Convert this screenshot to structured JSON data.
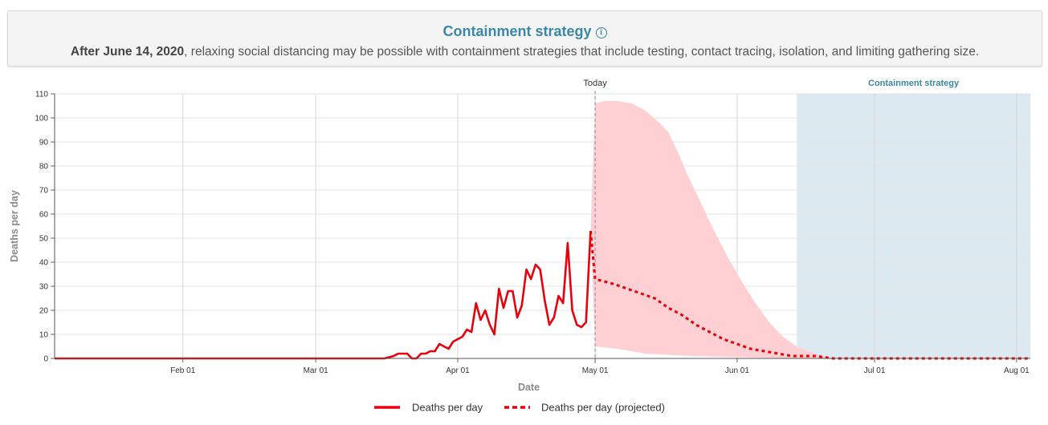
{
  "banner": {
    "title": "Containment strategy",
    "info_icon": "info-icon",
    "subtitle_bold": "After June 14, 2020",
    "subtitle_rest": ", relaxing social distancing may be possible with containment strategies that include testing, contact tracing, isolation, and limiting gathering size."
  },
  "chart_data": {
    "type": "line",
    "xlabel": "Date",
    "ylabel": "Deaths per day",
    "ylim": [
      0,
      110
    ],
    "xlim": [
      "2020-01-04",
      "2020-08-04"
    ],
    "grid": true,
    "yticks": [
      0,
      10,
      20,
      30,
      40,
      50,
      60,
      70,
      80,
      90,
      100,
      110
    ],
    "xticks": [
      {
        "date": "2020-02-01",
        "label": "Feb 01"
      },
      {
        "date": "2020-03-01",
        "label": "Mar 01"
      },
      {
        "date": "2020-04-01",
        "label": "Apr 01"
      },
      {
        "date": "2020-05-01",
        "label": "May 01"
      },
      {
        "date": "2020-06-01",
        "label": "Jun 01"
      },
      {
        "date": "2020-07-01",
        "label": "Jul 01"
      },
      {
        "date": "2020-08-01",
        "label": "Aug 01"
      }
    ],
    "today": {
      "date": "2020-05-01",
      "label": "Today"
    },
    "containment_region": {
      "start": "2020-06-14",
      "end": "2020-08-04",
      "label": "Containment strategy"
    },
    "legend_position": "bottom",
    "colors": {
      "actual": "#e8000b",
      "band": "#ffd0d3",
      "containment": "#dde9f0",
      "containment_label": "#3a87a7",
      "today_line": "#8a8a9a"
    },
    "series": [
      {
        "name": "Deaths per day",
        "style": "solid",
        "points": [
          [
            "2020-01-04",
            0
          ],
          [
            "2020-03-16",
            0
          ],
          [
            "2020-03-18",
            1
          ],
          [
            "2020-03-19",
            2
          ],
          [
            "2020-03-21",
            2
          ],
          [
            "2020-03-22",
            0
          ],
          [
            "2020-03-23",
            0
          ],
          [
            "2020-03-24",
            2
          ],
          [
            "2020-03-25",
            2
          ],
          [
            "2020-03-26",
            3
          ],
          [
            "2020-03-27",
            3
          ],
          [
            "2020-03-28",
            6
          ],
          [
            "2020-03-29",
            5
          ],
          [
            "2020-03-30",
            4
          ],
          [
            "2020-03-31",
            7
          ],
          [
            "2020-04-01",
            8
          ],
          [
            "2020-04-02",
            9
          ],
          [
            "2020-04-03",
            12
          ],
          [
            "2020-04-04",
            11
          ],
          [
            "2020-04-05",
            23
          ],
          [
            "2020-04-06",
            16
          ],
          [
            "2020-04-07",
            20
          ],
          [
            "2020-04-08",
            14
          ],
          [
            "2020-04-09",
            10
          ],
          [
            "2020-04-10",
            29
          ],
          [
            "2020-04-11",
            21
          ],
          [
            "2020-04-12",
            28
          ],
          [
            "2020-04-13",
            28
          ],
          [
            "2020-04-14",
            17
          ],
          [
            "2020-04-15",
            22
          ],
          [
            "2020-04-16",
            37
          ],
          [
            "2020-04-17",
            33
          ],
          [
            "2020-04-18",
            39
          ],
          [
            "2020-04-19",
            37
          ],
          [
            "2020-04-20",
            24
          ],
          [
            "2020-04-21",
            14
          ],
          [
            "2020-04-22",
            17
          ],
          [
            "2020-04-23",
            26
          ],
          [
            "2020-04-24",
            23
          ],
          [
            "2020-04-25",
            48
          ],
          [
            "2020-04-26",
            20
          ],
          [
            "2020-04-27",
            14
          ],
          [
            "2020-04-28",
            13
          ],
          [
            "2020-04-29",
            15
          ],
          [
            "2020-04-30",
            53
          ]
        ]
      },
      {
        "name": "Deaths per day (projected)",
        "style": "dashed",
        "points": [
          [
            "2020-04-30",
            53
          ],
          [
            "2020-05-01",
            33
          ],
          [
            "2020-05-03",
            32
          ],
          [
            "2020-05-05",
            31
          ],
          [
            "2020-05-08",
            29
          ],
          [
            "2020-05-11",
            27
          ],
          [
            "2020-05-14",
            25
          ],
          [
            "2020-05-17",
            21
          ],
          [
            "2020-05-20",
            18
          ],
          [
            "2020-05-23",
            14
          ],
          [
            "2020-05-26",
            11
          ],
          [
            "2020-05-29",
            8
          ],
          [
            "2020-06-01",
            6
          ],
          [
            "2020-06-04",
            4
          ],
          [
            "2020-06-07",
            3
          ],
          [
            "2020-06-10",
            2
          ],
          [
            "2020-06-13",
            1
          ],
          [
            "2020-06-18",
            1
          ],
          [
            "2020-06-22",
            0
          ],
          [
            "2020-08-04",
            0
          ]
        ]
      }
    ],
    "uncertainty_band": {
      "upper": [
        [
          "2020-04-30",
          53
        ],
        [
          "2020-05-01",
          106
        ],
        [
          "2020-05-03",
          107
        ],
        [
          "2020-05-06",
          107
        ],
        [
          "2020-05-09",
          106
        ],
        [
          "2020-05-12",
          103
        ],
        [
          "2020-05-15",
          98
        ],
        [
          "2020-05-17",
          94
        ],
        [
          "2020-05-19",
          86
        ],
        [
          "2020-05-21",
          77
        ],
        [
          "2020-05-24",
          65
        ],
        [
          "2020-05-27",
          53
        ],
        [
          "2020-05-30",
          42
        ],
        [
          "2020-06-02",
          32
        ],
        [
          "2020-06-05",
          23
        ],
        [
          "2020-06-08",
          15
        ],
        [
          "2020-06-11",
          9
        ],
        [
          "2020-06-14",
          5
        ],
        [
          "2020-06-18",
          2
        ],
        [
          "2020-06-22",
          0
        ]
      ],
      "lower": [
        [
          "2020-06-22",
          0
        ],
        [
          "2020-06-14",
          0
        ],
        [
          "2020-06-01",
          0.5
        ],
        [
          "2020-05-22",
          1
        ],
        [
          "2020-05-12",
          2
        ],
        [
          "2020-05-06",
          4
        ],
        [
          "2020-05-01",
          5
        ],
        [
          "2020-04-30",
          53
        ]
      ]
    }
  }
}
